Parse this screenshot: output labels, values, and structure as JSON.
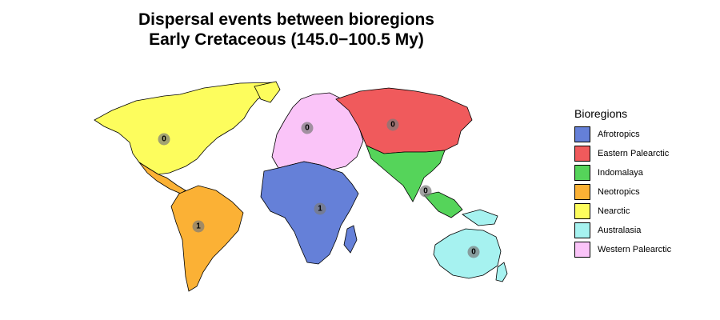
{
  "title": {
    "line1": "Dispersal events between bioregions",
    "line2": "Early Cretaceous (145.0−100.5 My)"
  },
  "legend": {
    "title": "Bioregions",
    "items": [
      {
        "label": "Afrotropics",
        "color": "#6580d8"
      },
      {
        "label": "Eastern Palearctic",
        "color": "#f05a5c"
      },
      {
        "label": "Indomalaya",
        "color": "#55d45a"
      },
      {
        "label": "Neotropics",
        "color": "#fbb135"
      },
      {
        "label": "Nearctic",
        "color": "#fdfd5d"
      },
      {
        "label": "Australasia",
        "color": "#a6f2f0"
      },
      {
        "label": "Western Palearctic",
        "color": "#fac4f8"
      }
    ]
  },
  "counts": {
    "nearctic": "0",
    "western_palearctic": "0",
    "eastern_palearctic": "0",
    "indomalaya": "0",
    "neotropics": "1",
    "afrotropics": "1",
    "australasia": "0"
  }
}
